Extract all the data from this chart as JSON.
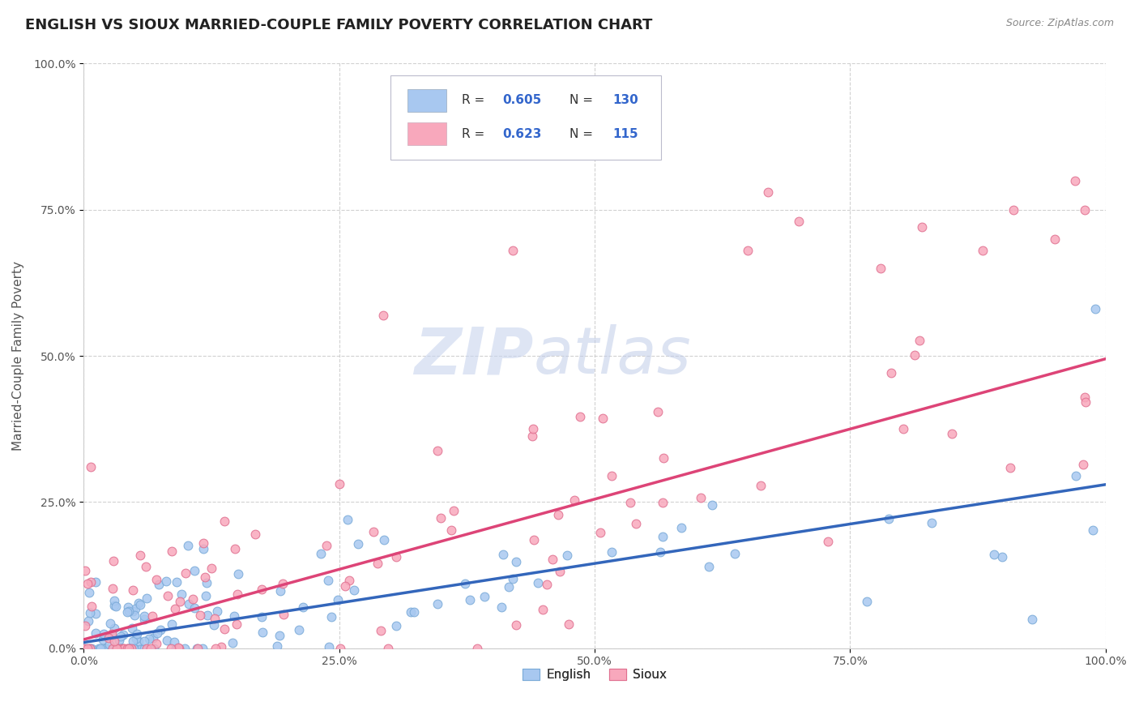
{
  "title": "ENGLISH VS SIOUX MARRIED-COUPLE FAMILY POVERTY CORRELATION CHART",
  "source": "Source: ZipAtlas.com",
  "ylabel": "Married-Couple Family Poverty",
  "xlim": [
    0,
    100
  ],
  "ylim": [
    0,
    100
  ],
  "xtick_labels": [
    "0.0%",
    "25.0%",
    "50.0%",
    "75.0%",
    "100.0%"
  ],
  "xtick_values": [
    0,
    25,
    50,
    75,
    100
  ],
  "ytick_labels": [
    "0.0%",
    "25.0%",
    "50.0%",
    "75.0%",
    "100.0%"
  ],
  "ytick_values": [
    0,
    25,
    50,
    75,
    100
  ],
  "english_color": "#A8C8F0",
  "english_edge_color": "#7AAAD8",
  "sioux_color": "#F8A8BC",
  "sioux_edge_color": "#E07090",
  "english_line_color": "#3366BB",
  "sioux_line_color": "#DD4477",
  "english_R": 0.605,
  "english_N": 130,
  "sioux_R": 0.623,
  "sioux_N": 115,
  "background_color": "#FFFFFF",
  "grid_color": "#CCCCCC",
  "title_fontsize": 13,
  "axis_label_fontsize": 11,
  "tick_fontsize": 10,
  "legend_blue_color": "#3355BB",
  "legend_num_color": "#3366CC",
  "watermark_zip_color": "#C8D4EC",
  "watermark_atlas_color": "#C8D8EC"
}
